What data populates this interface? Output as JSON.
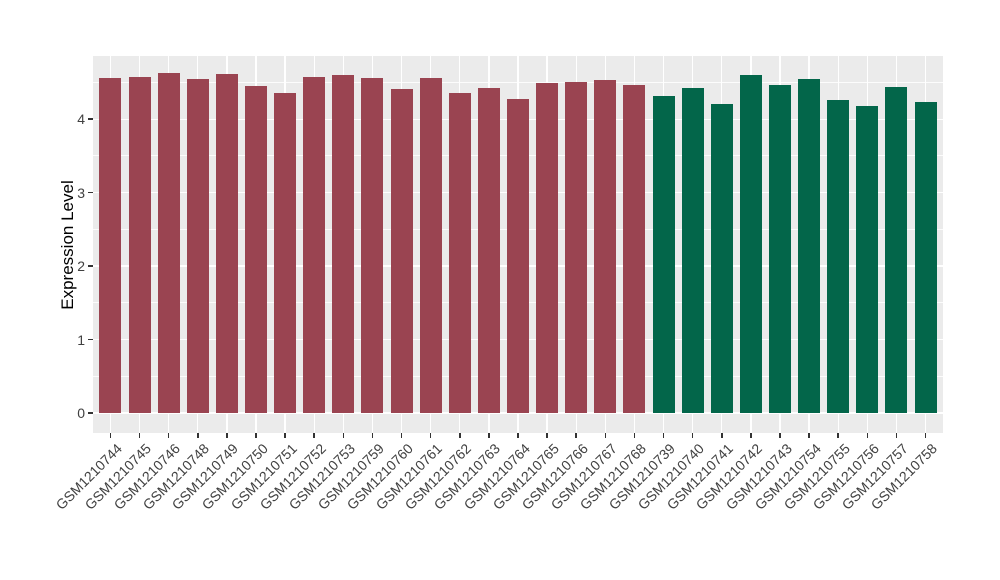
{
  "chart_data": {
    "type": "bar",
    "title": "",
    "xlabel": "",
    "ylabel": "Expression Level",
    "yticks": [
      0,
      1,
      2,
      3,
      4
    ],
    "yminor": [
      0.5,
      1.5,
      2.5,
      3.5,
      4.5
    ],
    "ylim": [
      -0.27,
      4.86
    ],
    "legend": "none",
    "panel_bg": "#EBEBEB",
    "grid_color": "#FFFFFF",
    "axis_text_color": "#404040",
    "tick_mark_color": "#333333",
    "groups": {
      "g1": {
        "color": "#9A4451"
      },
      "g2": {
        "color": "#03664A"
      }
    },
    "bars": [
      {
        "label": "GSM1210744",
        "value": 4.56,
        "group": "g1"
      },
      {
        "label": "GSM1210745",
        "value": 4.58,
        "group": "g1"
      },
      {
        "label": "GSM1210746",
        "value": 4.63,
        "group": "g1"
      },
      {
        "label": "GSM1210748",
        "value": 4.55,
        "group": "g1"
      },
      {
        "label": "GSM1210749",
        "value": 4.61,
        "group": "g1"
      },
      {
        "label": "GSM1210750",
        "value": 4.45,
        "group": "g1"
      },
      {
        "label": "GSM1210751",
        "value": 4.36,
        "group": "g1"
      },
      {
        "label": "GSM1210752",
        "value": 4.58,
        "group": "g1"
      },
      {
        "label": "GSM1210753",
        "value": 4.6,
        "group": "g1"
      },
      {
        "label": "GSM1210759",
        "value": 4.56,
        "group": "g1"
      },
      {
        "label": "GSM1210760",
        "value": 4.41,
        "group": "g1"
      },
      {
        "label": "GSM1210761",
        "value": 4.56,
        "group": "g1"
      },
      {
        "label": "GSM1210762",
        "value": 4.36,
        "group": "g1"
      },
      {
        "label": "GSM1210763",
        "value": 4.43,
        "group": "g1"
      },
      {
        "label": "GSM1210764",
        "value": 4.28,
        "group": "g1"
      },
      {
        "label": "GSM1210765",
        "value": 4.49,
        "group": "g1"
      },
      {
        "label": "GSM1210766",
        "value": 4.5,
        "group": "g1"
      },
      {
        "label": "GSM1210767",
        "value": 4.53,
        "group": "g1"
      },
      {
        "label": "GSM1210768",
        "value": 4.47,
        "group": "g1"
      },
      {
        "label": "GSM1210739",
        "value": 4.31,
        "group": "g2"
      },
      {
        "label": "GSM1210740",
        "value": 4.42,
        "group": "g2"
      },
      {
        "label": "GSM1210741",
        "value": 4.21,
        "group": "g2"
      },
      {
        "label": "GSM1210742",
        "value": 4.6,
        "group": "g2"
      },
      {
        "label": "GSM1210743",
        "value": 4.46,
        "group": "g2"
      },
      {
        "label": "GSM1210754",
        "value": 4.55,
        "group": "g2"
      },
      {
        "label": "GSM1210755",
        "value": 4.26,
        "group": "g2"
      },
      {
        "label": "GSM1210756",
        "value": 4.18,
        "group": "g2"
      },
      {
        "label": "GSM1210757",
        "value": 4.44,
        "group": "g2"
      },
      {
        "label": "GSM1210758",
        "value": 4.23,
        "group": "g2"
      }
    ]
  }
}
